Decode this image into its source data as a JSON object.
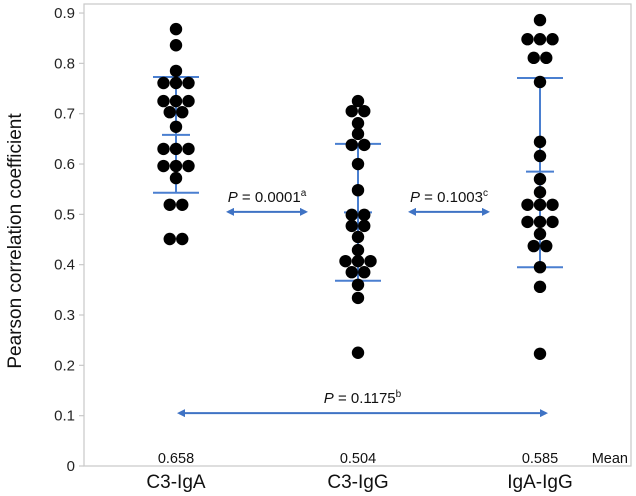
{
  "chart_data": {
    "type": "scatter",
    "subtype": "dot-plot-with-mean-and-sd",
    "title": "",
    "xlabel": "",
    "ylabel": "Pearson correlation coefficient",
    "ylim": [
      0,
      0.9
    ],
    "yticks": [
      "0",
      "0.1",
      "0.2",
      "0.3",
      "0.4",
      "0.5",
      "0.6",
      "0.7",
      "0.8",
      "0.9"
    ],
    "ytick_values": [
      0,
      0.1,
      0.2,
      0.3,
      0.4,
      0.5,
      0.6,
      0.7,
      0.8,
      0.9
    ],
    "grid": false,
    "categories": [
      "C3-IgA",
      "C3-IgG",
      "IgA-IgG"
    ],
    "series": [
      {
        "name": "C3-IgA",
        "mean": 0.658,
        "mean_label": "0.658",
        "sd_upper": 0.773,
        "sd_lower": 0.543,
        "values": [
          0.868,
          0.836,
          0.785,
          0.761,
          0.761,
          0.761,
          0.725,
          0.725,
          0.725,
          0.703,
          0.703,
          0.674,
          0.63,
          0.63,
          0.63,
          0.596,
          0.596,
          0.596,
          0.572,
          0.519,
          0.519,
          0.451,
          0.451
        ]
      },
      {
        "name": "C3-IgG",
        "mean": 0.504,
        "mean_label": "0.504",
        "sd_upper": 0.64,
        "sd_lower": 0.368,
        "values": [
          0.725,
          0.705,
          0.705,
          0.681,
          0.66,
          0.638,
          0.638,
          0.6,
          0.548,
          0.499,
          0.499,
          0.477,
          0.477,
          0.455,
          0.429,
          0.407,
          0.407,
          0.407,
          0.385,
          0.385,
          0.36,
          0.334,
          0.225
        ]
      },
      {
        "name": "IgA-IgG",
        "mean": 0.585,
        "mean_label": "0.585",
        "sd_upper": 0.771,
        "sd_lower": 0.395,
        "values": [
          0.886,
          0.848,
          0.848,
          0.848,
          0.811,
          0.811,
          0.763,
          0.644,
          0.616,
          0.57,
          0.544,
          0.519,
          0.519,
          0.519,
          0.485,
          0.485,
          0.485,
          0.461,
          0.437,
          0.437,
          0.395,
          0.356,
          0.223
        ]
      }
    ],
    "mean_row_label": "Mean",
    "comparisons": [
      {
        "from": "C3-IgA",
        "to": "C3-IgG",
        "at_value": 0.505,
        "p_prefix": "P",
        "p_text": " = 0.0001",
        "superscript": "a"
      },
      {
        "from": "C3-IgG",
        "to": "IgA-IgG",
        "at_value": 0.505,
        "p_prefix": "P",
        "p_text": " = 0.1003",
        "superscript": "c"
      },
      {
        "from": "C3-IgA",
        "to": "IgA-IgG",
        "at_value": 0.105,
        "p_prefix": "P",
        "p_text": " = 0.1175",
        "superscript": "b"
      }
    ],
    "colors": {
      "dots": "#000000",
      "error_bars": "#4a7fd0",
      "arrows": "#3f73c4",
      "axis": "#c8c8c8"
    }
  }
}
